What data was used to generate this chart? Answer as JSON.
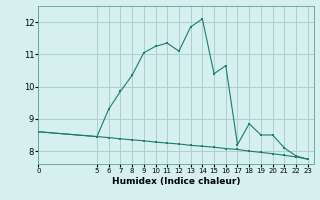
{
  "xlabel": "Humidex (Indice chaleur)",
  "ylabel": "",
  "bg_color": "#d6f0ef",
  "grid_color": "#aacfcd",
  "line_color": "#1a7a6e",
  "xlim": [
    0,
    23.5
  ],
  "ylim": [
    7.6,
    12.5
  ],
  "yticks": [
    8,
    9,
    10,
    11,
    12
  ],
  "xticks": [
    0,
    5,
    6,
    7,
    8,
    9,
    10,
    11,
    12,
    13,
    14,
    15,
    16,
    17,
    18,
    19,
    20,
    21,
    22,
    23
  ],
  "curve1_x": [
    0,
    5,
    6,
    7,
    8,
    9,
    10,
    11,
    12,
    13,
    14,
    15,
    16,
    17,
    18,
    19,
    20,
    21,
    22,
    23
  ],
  "curve1_y": [
    8.6,
    8.45,
    9.3,
    9.85,
    10.35,
    11.05,
    11.25,
    11.35,
    11.1,
    11.85,
    12.1,
    10.4,
    10.65,
    8.2,
    8.85,
    8.5,
    8.5,
    8.1,
    7.85,
    7.75
  ],
  "curve2_x": [
    0,
    5,
    6,
    7,
    8,
    9,
    10,
    11,
    12,
    13,
    14,
    15,
    16,
    17,
    18,
    19,
    20,
    21,
    22,
    23
  ],
  "curve2_y": [
    8.6,
    8.45,
    8.42,
    8.38,
    8.35,
    8.32,
    8.28,
    8.25,
    8.22,
    8.18,
    8.15,
    8.12,
    8.08,
    8.05,
    8.0,
    7.96,
    7.92,
    7.87,
    7.82,
    7.75
  ]
}
